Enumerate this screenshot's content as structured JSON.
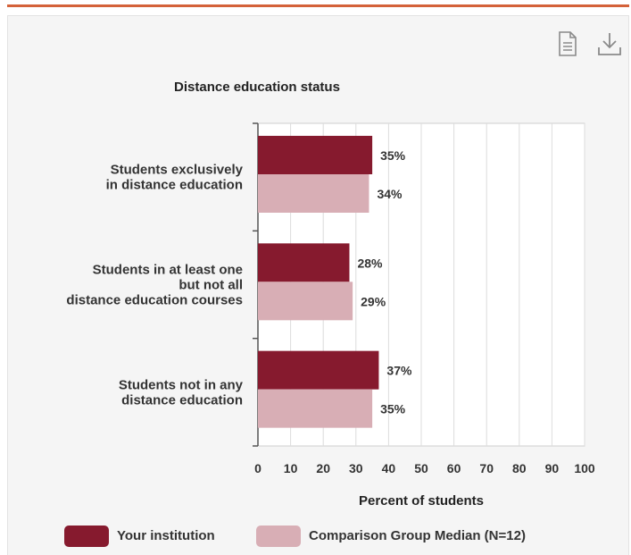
{
  "toolbar": {
    "report_icon": "document-icon",
    "download_icon": "download-icon"
  },
  "colors": {
    "accent_bar": "#d4623a",
    "your_institution": "#861a2e",
    "comparison": "#d8aeb5",
    "plot_bg": "#ffffff",
    "gridline": "#dcdcdc"
  },
  "chart_data": {
    "type": "bar",
    "orientation": "horizontal",
    "title": "Distance education status",
    "xlabel": "Percent of students",
    "ylabel": "",
    "xlim": [
      0,
      100
    ],
    "x_ticks": [
      "0",
      "10",
      "20",
      "30",
      "40",
      "50",
      "60",
      "70",
      "80",
      "90",
      "100"
    ],
    "categories": [
      [
        "Students exclusively",
        "in distance education"
      ],
      [
        "Students in at least one",
        "but not all",
        "distance education courses"
      ],
      [
        "Students not in any",
        "distance education"
      ]
    ],
    "series": [
      {
        "name": "Your institution",
        "values": [
          35,
          28,
          37
        ],
        "labels": [
          "35%",
          "28%",
          "37%"
        ]
      },
      {
        "name": "Comparison Group Median (N=12)",
        "values": [
          34,
          29,
          35
        ],
        "labels": [
          "34%",
          "29%",
          "35%"
        ]
      }
    ],
    "grid": true,
    "legend_position": "bottom"
  }
}
